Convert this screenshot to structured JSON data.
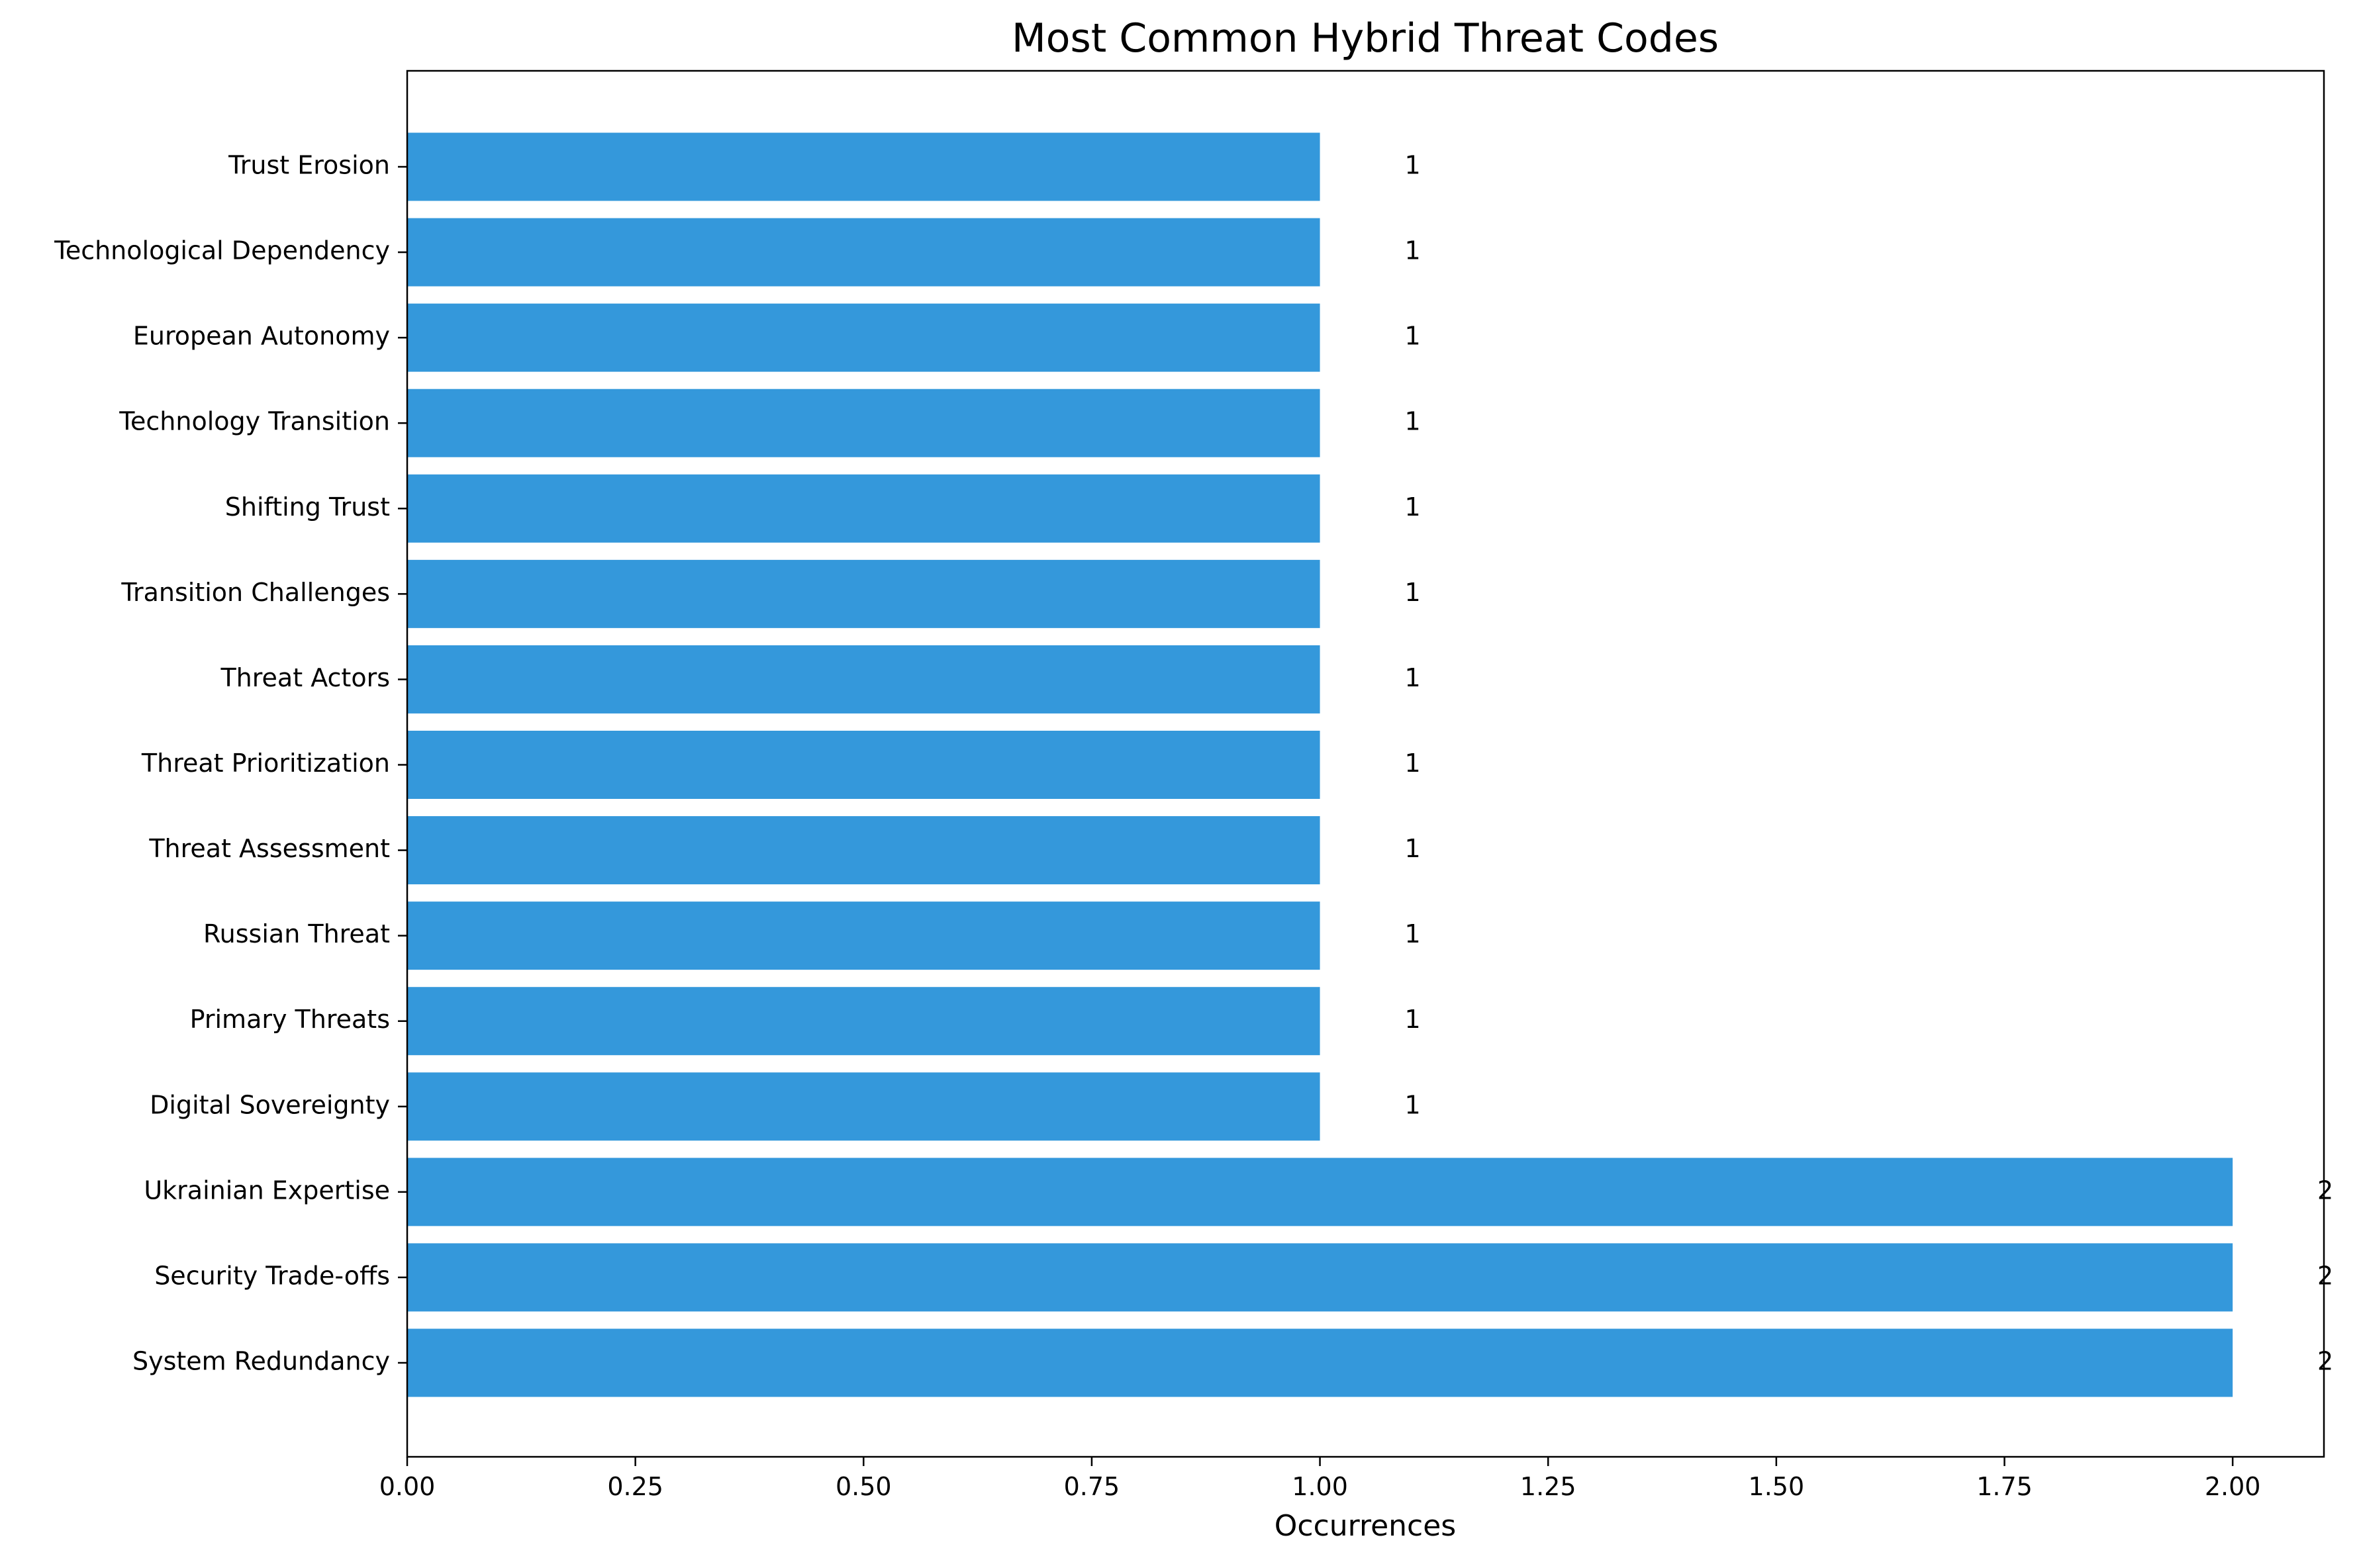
{
  "chart_data": {
    "type": "bar",
    "orientation": "horizontal",
    "title": "Most Common Hybrid Threat Codes",
    "xlabel": "Occurrences",
    "ylabel": "",
    "xlim": [
      0,
      2.1
    ],
    "xticks": [
      "0.00",
      "0.25",
      "0.50",
      "0.75",
      "1.00",
      "1.25",
      "1.50",
      "1.75",
      "2.00"
    ],
    "categories": [
      "Trust Erosion",
      "Technological Dependency",
      "European Autonomy",
      "Technology Transition",
      "Shifting Trust",
      "Transition Challenges",
      "Threat Actors",
      "Threat Prioritization",
      "Threat Assessment",
      "Russian Threat",
      "Primary Threats",
      "Digital Sovereignty",
      "Ukrainian Expertise",
      "Security Trade-offs",
      "System Redundancy"
    ],
    "values": [
      1,
      1,
      1,
      1,
      1,
      1,
      1,
      1,
      1,
      1,
      1,
      1,
      2,
      2,
      2
    ],
    "data_labels": [
      "1",
      "1",
      "1",
      "1",
      "1",
      "1",
      "1",
      "1",
      "1",
      "1",
      "1",
      "1",
      "2",
      "2",
      "2"
    ],
    "bar_color": "#3498db",
    "grid": false
  }
}
